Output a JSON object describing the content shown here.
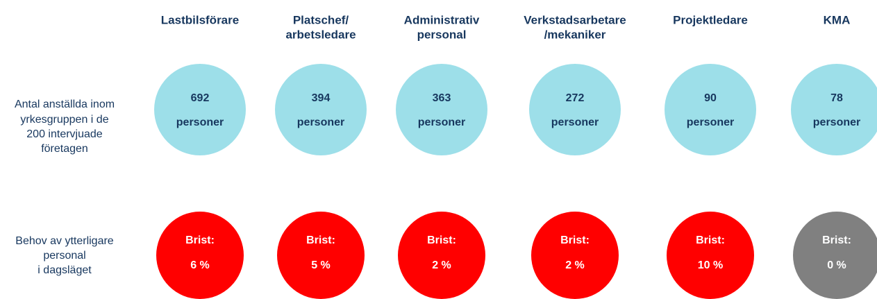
{
  "row_labels": [
    {
      "lines": [
        "Antal anställda inom",
        "yrkesgruppen i de",
        "200 intervjuade",
        "företagen"
      ]
    },
    {
      "lines": [
        "Behov av ytterligare",
        "personal",
        "i dagsläget"
      ]
    }
  ],
  "columns": [
    {
      "header": [
        "Lastbilsförare"
      ],
      "count": 692,
      "unit": "personer",
      "shortage_label": "Brist:",
      "shortage": "6 %",
      "color": "#ff0000"
    },
    {
      "header": [
        "Platschef/",
        "arbetsledare"
      ],
      "count": 394,
      "unit": "personer",
      "shortage_label": "Brist:",
      "shortage": "5 %",
      "color": "#ff0000"
    },
    {
      "header": [
        "Administrativ",
        "personal"
      ],
      "count": 363,
      "unit": "personer",
      "shortage_label": "Brist:",
      "shortage": "2 %",
      "color": "#ff0000"
    },
    {
      "header": [
        "Verkstadsarbetare",
        "/mekaniker"
      ],
      "count": 272,
      "unit": "personer",
      "shortage_label": "Brist:",
      "shortage": "2 %",
      "color": "#ff0000"
    },
    {
      "header": [
        "Projektledare"
      ],
      "count": 90,
      "unit": "personer",
      "shortage_label": "Brist:",
      "shortage": "10 %",
      "color": "#ff0000"
    },
    {
      "header": [
        "KMA"
      ],
      "count": 78,
      "unit": "personer",
      "shortage_label": "Brist:",
      "shortage": "0 %",
      "color": "#808080"
    }
  ]
}
